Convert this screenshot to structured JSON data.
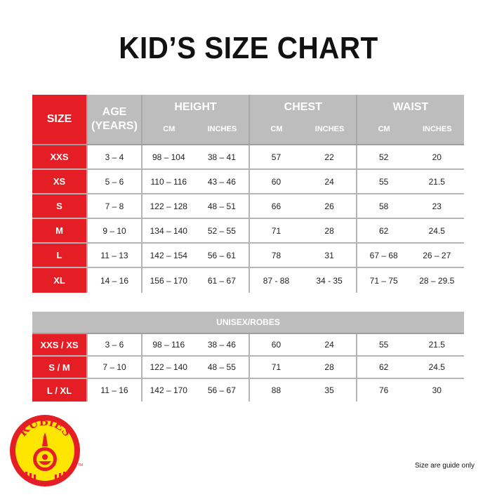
{
  "title": "KID’S SIZE CHART",
  "header": {
    "size": "SIZE",
    "age_line1": "AGE",
    "age_line2": "(YEARS)",
    "groups": [
      {
        "label": "HEIGHT",
        "sub": [
          "CM",
          "INCHES"
        ]
      },
      {
        "label": "CHEST",
        "sub": [
          "CM",
          "INCHES"
        ]
      },
      {
        "label": "WAIST",
        "sub": [
          "CM",
          "INCHES"
        ]
      }
    ]
  },
  "rows": [
    [
      "XXS",
      "3 – 4",
      "98 – 104",
      "38 – 41",
      "57",
      "22",
      "52",
      "20"
    ],
    [
      "XS",
      "5 – 6",
      "110 – 116",
      "43 – 46",
      "60",
      "24",
      "55",
      "21.5"
    ],
    [
      "S",
      "7 – 8",
      "122 – 128",
      "48 – 51",
      "66",
      "26",
      "58",
      "23"
    ],
    [
      "M",
      "9 – 10",
      "134 – 140",
      "52 – 55",
      "71",
      "28",
      "62",
      "24.5"
    ],
    [
      "L",
      "11 – 13",
      "142 – 154",
      "56 – 61",
      "78",
      "31",
      "67 – 68",
      "26 – 27"
    ],
    [
      "XL",
      "14 – 16",
      "156 – 170",
      "61 – 67",
      "87 - 88",
      "34 - 35",
      "71 – 75",
      "28 – 29.5"
    ]
  ],
  "unisex": {
    "label": "UNISEX/ROBES",
    "rows": [
      [
        "XXS / XS",
        "3 – 6",
        "98 – 116",
        "38 – 46",
        "60",
        "24",
        "55",
        "21.5"
      ],
      [
        "S / M",
        "7 – 10",
        "122 – 140",
        "48 – 55",
        "71",
        "28",
        "62",
        "24.5"
      ],
      [
        "L / XL",
        "11 – 16",
        "142 – 170",
        "56 – 67",
        "88",
        "35",
        "76",
        "30"
      ]
    ]
  },
  "logo": {
    "text": "RUBIES",
    "tm": "TM"
  },
  "note": "Size are guide only",
  "colors": {
    "accent_red": "#e51e25",
    "header_grey": "#bdbdbd",
    "logo_yellow": "#ffe600"
  }
}
